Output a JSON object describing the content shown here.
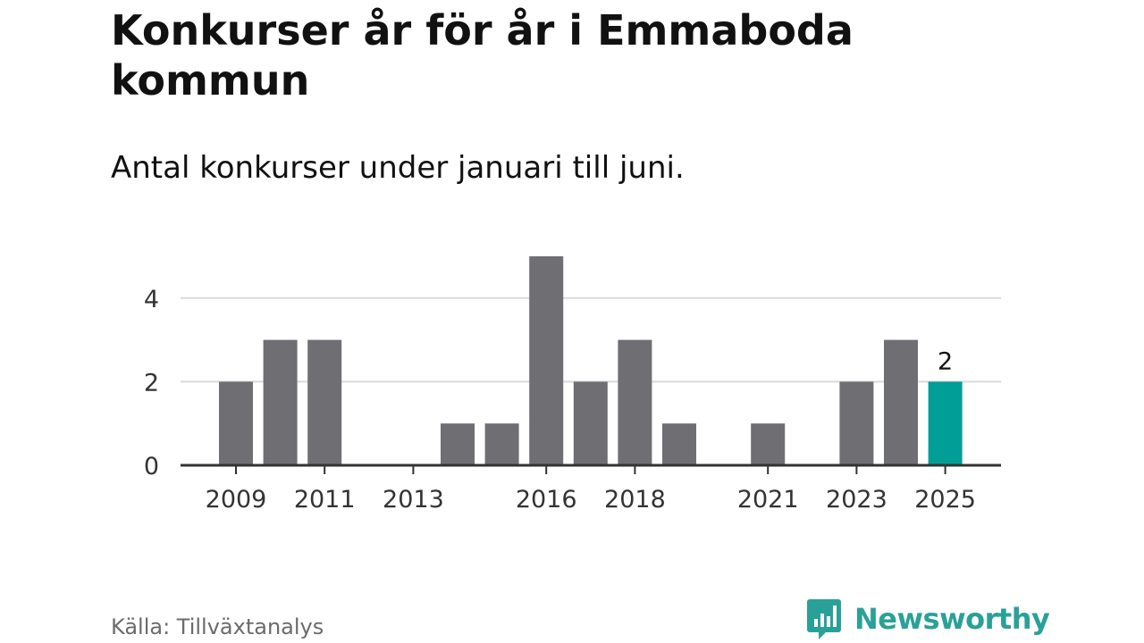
{
  "header": {
    "title": "Konkurser år för år i Emmaboda kommun",
    "subtitle": "Antal konkurser under januari till juni."
  },
  "footer": {
    "source": "Källa: Tillväxtanalys",
    "brand": "Newsworthy",
    "brand_icon": "bar-chart-icon"
  },
  "colors": {
    "bar": "#6f6e73",
    "highlight": "#009e96",
    "grid": "#d9d9d9",
    "axis": "#333333",
    "text": "#333333",
    "brand": "#2aa198"
  },
  "chart_data": {
    "type": "bar",
    "categories": [
      "2009",
      "2010",
      "2011",
      "2012",
      "2013",
      "2014",
      "2015",
      "2016",
      "2017",
      "2018",
      "2019",
      "2020",
      "2021",
      "2022",
      "2023",
      "2024",
      "2025"
    ],
    "values": [
      2,
      3,
      3,
      0,
      0,
      1,
      1,
      5,
      2,
      3,
      1,
      0,
      1,
      0,
      2,
      3,
      2
    ],
    "x_tick_labels": [
      "2009",
      "2011",
      "2013",
      "2016",
      "2018",
      "2021",
      "2023",
      "2025"
    ],
    "y_ticks": [
      0,
      2,
      4
    ],
    "ylim": [
      0,
      5
    ],
    "highlight_category": "2025",
    "data_labels": [
      {
        "category": "2025",
        "text": "2"
      }
    ],
    "grid": true,
    "legend": "none"
  }
}
